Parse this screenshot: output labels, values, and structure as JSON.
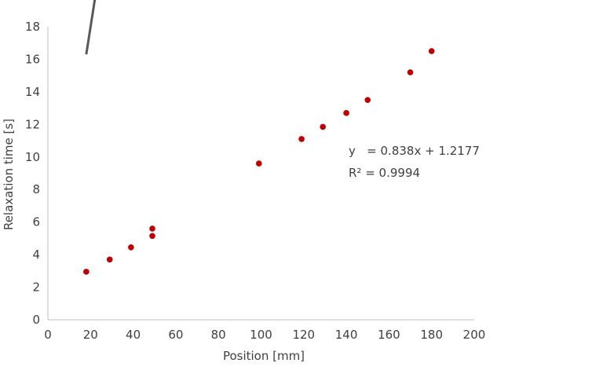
{
  "chart_data": {
    "type": "scatter",
    "xlabel": "Position [mm]",
    "ylabel": "Relaxation time [s]",
    "xlim": [
      0,
      200
    ],
    "ylim": [
      0,
      18
    ],
    "xticks": [
      "0",
      "20",
      "40",
      "60",
      "80",
      "100",
      "120",
      "140",
      "160",
      "180",
      "200"
    ],
    "yticks": [
      "0",
      "2",
      "4",
      "6",
      "8",
      "10",
      "12",
      "14",
      "16",
      "18"
    ],
    "grid": false,
    "marker_color": "#c00000",
    "trendline_color": "#595959",
    "points": [
      {
        "x": 18,
        "y": 2.95
      },
      {
        "x": 29,
        "y": 3.7
      },
      {
        "x": 39,
        "y": 4.45
      },
      {
        "x": 49,
        "y": 5.15
      },
      {
        "x": 49,
        "y": 5.6
      },
      {
        "x": 99,
        "y": 9.6
      },
      {
        "x": 119,
        "y": 11.1
      },
      {
        "x": 129,
        "y": 11.85
      },
      {
        "x": 140,
        "y": 12.7
      },
      {
        "x": 150,
        "y": 13.5
      },
      {
        "x": 170,
        "y": 15.2
      },
      {
        "x": 180,
        "y": 16.5
      }
    ],
    "trendline": {
      "slope": 0.838,
      "intercept": 1.2177,
      "x_start": 18,
      "x_end": 180
    },
    "annotations": {
      "equation": "y   = 0.838x + 1.2177",
      "r_squared": "R² = 0.9994"
    }
  }
}
